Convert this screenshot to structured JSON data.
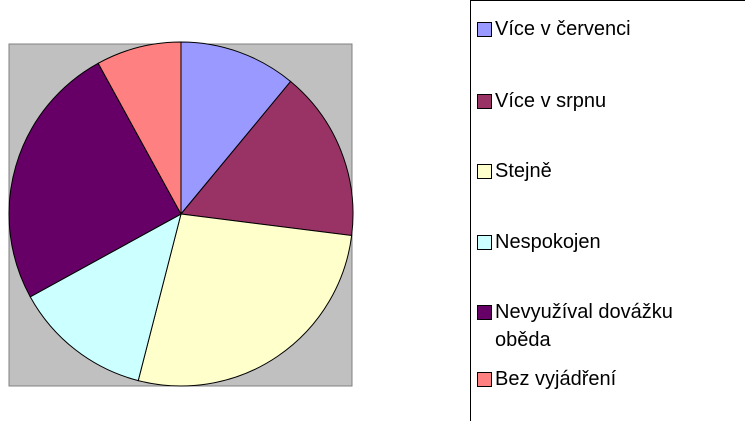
{
  "chart_data": {
    "type": "pie",
    "categories": [
      "Více v červenci",
      "Více v srpnu",
      "Stejně",
      "Nespokojen",
      "Nevyužíval dovážku oběda",
      "Bez vyjádření"
    ],
    "values": [
      11,
      16,
      27,
      13,
      25,
      8
    ],
    "colors": [
      "#9999ff",
      "#993366",
      "#ffffcc",
      "#ccffff",
      "#660066",
      "#ff8080"
    ]
  }
}
